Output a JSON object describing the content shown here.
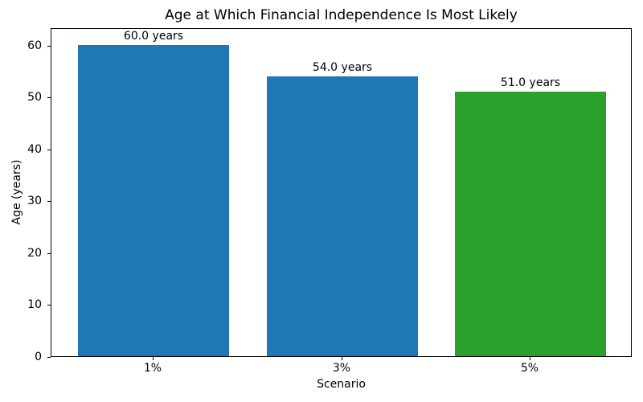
{
  "chart_data": {
    "type": "bar",
    "title": "Age at Which Financial Independence Is Most Likely",
    "xlabel": "Scenario",
    "ylabel": "Age (years)",
    "categories": [
      "1%",
      "3%",
      "5%"
    ],
    "values": [
      60.0,
      54.0,
      51.0
    ],
    "bar_labels": [
      "60.0 years",
      "54.0 years",
      "51.0 years"
    ],
    "bar_colors": [
      "#1f77b4",
      "#1f77b4",
      "#2ca02c"
    ],
    "yticks": [
      0,
      10,
      20,
      30,
      40,
      50,
      60
    ],
    "ylim": [
      0,
      63.4
    ],
    "grid": false,
    "legend_position": "none",
    "background_color": "#ffffff",
    "axis_color": "#000000"
  }
}
